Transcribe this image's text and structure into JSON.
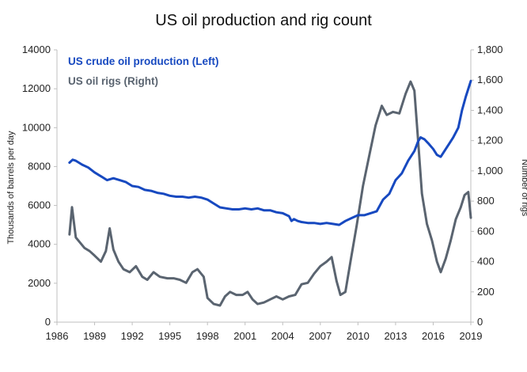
{
  "chart_data": {
    "type": "line",
    "title": "US oil production and rig count",
    "ylabel_left": "Thousands of barrels per day",
    "ylabel_right": "Number of rigs",
    "xlim": [
      1986,
      2019
    ],
    "ylim_left": [
      0,
      14000
    ],
    "ylim_right": [
      0,
      1800
    ],
    "x_ticks": [
      "1986",
      "1989",
      "1992",
      "1995",
      "1998",
      "2001",
      "2004",
      "2007",
      "2010",
      "2013",
      "2016",
      "2019"
    ],
    "y_ticks_left": [
      "0",
      "2000",
      "4000",
      "6000",
      "8000",
      "10000",
      "12000",
      "14000"
    ],
    "y_ticks_right": [
      "0",
      "200",
      "400",
      "600",
      "800",
      "1,000",
      "1,200",
      "1,400",
      "1,600",
      "1,800"
    ],
    "grid": false,
    "legend_position": "top-left",
    "series": [
      {
        "name": "US crude oil production (Left)",
        "axis": "left",
        "color": "#1749c0",
        "x": [
          1987.0,
          1987.25,
          1987.5,
          1987.75,
          1988.0,
          1988.5,
          1989.0,
          1989.5,
          1990.0,
          1990.5,
          1991.0,
          1991.5,
          1992.0,
          1992.5,
          1993.0,
          1993.5,
          1994.0,
          1994.5,
          1995.0,
          1995.5,
          1996.0,
          1996.5,
          1997.0,
          1997.5,
          1998.0,
          1998.5,
          1999.0,
          1999.5,
          2000.0,
          2000.5,
          2001.0,
          2001.5,
          2002.0,
          2002.5,
          2003.0,
          2003.5,
          2004.0,
          2004.5,
          2004.7,
          2004.9,
          2005.2,
          2005.5,
          2006.0,
          2006.5,
          2007.0,
          2007.5,
          2008.0,
          2008.5,
          2009.0,
          2009.5,
          2010.0,
          2010.5,
          2011.0,
          2011.5,
          2012.0,
          2012.5,
          2013.0,
          2013.5,
          2014.0,
          2014.5,
          2014.8,
          2015.0,
          2015.3,
          2015.6,
          2016.0,
          2016.3,
          2016.6,
          2017.0,
          2017.3,
          2017.6,
          2018.0,
          2018.3,
          2018.6,
          2019.0
        ],
        "y": [
          8200,
          8350,
          8300,
          8200,
          8100,
          7950,
          7700,
          7500,
          7300,
          7400,
          7300,
          7200,
          7000,
          6950,
          6800,
          6750,
          6650,
          6600,
          6500,
          6450,
          6450,
          6400,
          6450,
          6400,
          6300,
          6100,
          5900,
          5850,
          5800,
          5800,
          5850,
          5800,
          5850,
          5750,
          5750,
          5650,
          5600,
          5450,
          5200,
          5300,
          5200,
          5150,
          5100,
          5100,
          5050,
          5100,
          5050,
          5000,
          5200,
          5350,
          5500,
          5500,
          5600,
          5700,
          6300,
          6600,
          7300,
          7650,
          8300,
          8800,
          9300,
          9500,
          9400,
          9200,
          8900,
          8600,
          8500,
          8900,
          9200,
          9500,
          10000,
          10900,
          11600,
          12400
        ]
      },
      {
        "name": "US oil rigs (Right)",
        "axis": "right",
        "color": "#5a6470",
        "x": [
          1987.0,
          1987.2,
          1987.5,
          1987.8,
          1988.2,
          1988.6,
          1989.0,
          1989.5,
          1989.9,
          1990.2,
          1990.5,
          1990.9,
          1991.3,
          1991.8,
          1992.3,
          1992.8,
          1993.2,
          1993.7,
          1994.2,
          1994.8,
          1995.3,
          1995.8,
          1996.3,
          1996.8,
          1997.2,
          1997.7,
          1998.0,
          1998.5,
          1999.0,
          1999.4,
          1999.8,
          2000.3,
          2000.8,
          2001.2,
          2001.6,
          2002.0,
          2002.5,
          2003.0,
          2003.5,
          2004.0,
          2004.5,
          2005.0,
          2005.5,
          2006.0,
          2006.5,
          2007.0,
          2007.5,
          2007.9,
          2008.3,
          2008.6,
          2009.0,
          2009.4,
          2009.9,
          2010.4,
          2010.9,
          2011.4,
          2011.9,
          2012.3,
          2012.8,
          2013.3,
          2013.8,
          2014.2,
          2014.5,
          2014.8,
          2015.1,
          2015.5,
          2015.9,
          2016.3,
          2016.6,
          2017.0,
          2017.4,
          2017.8,
          2018.2,
          2018.5,
          2018.8,
          2019.0
        ],
        "y": [
          580,
          760,
          560,
          530,
          490,
          470,
          440,
          400,
          470,
          620,
          480,
          400,
          350,
          330,
          370,
          300,
          280,
          330,
          300,
          290,
          290,
          280,
          260,
          330,
          350,
          300,
          160,
          120,
          110,
          170,
          200,
          180,
          180,
          200,
          150,
          120,
          130,
          150,
          170,
          150,
          170,
          180,
          250,
          260,
          320,
          370,
          400,
          430,
          270,
          180,
          200,
          400,
          640,
          900,
          1100,
          1300,
          1430,
          1370,
          1390,
          1380,
          1510,
          1590,
          1530,
          1200,
          850,
          650,
          540,
          400,
          330,
          420,
          540,
          680,
          760,
          840,
          860,
          690
        ]
      }
    ]
  }
}
